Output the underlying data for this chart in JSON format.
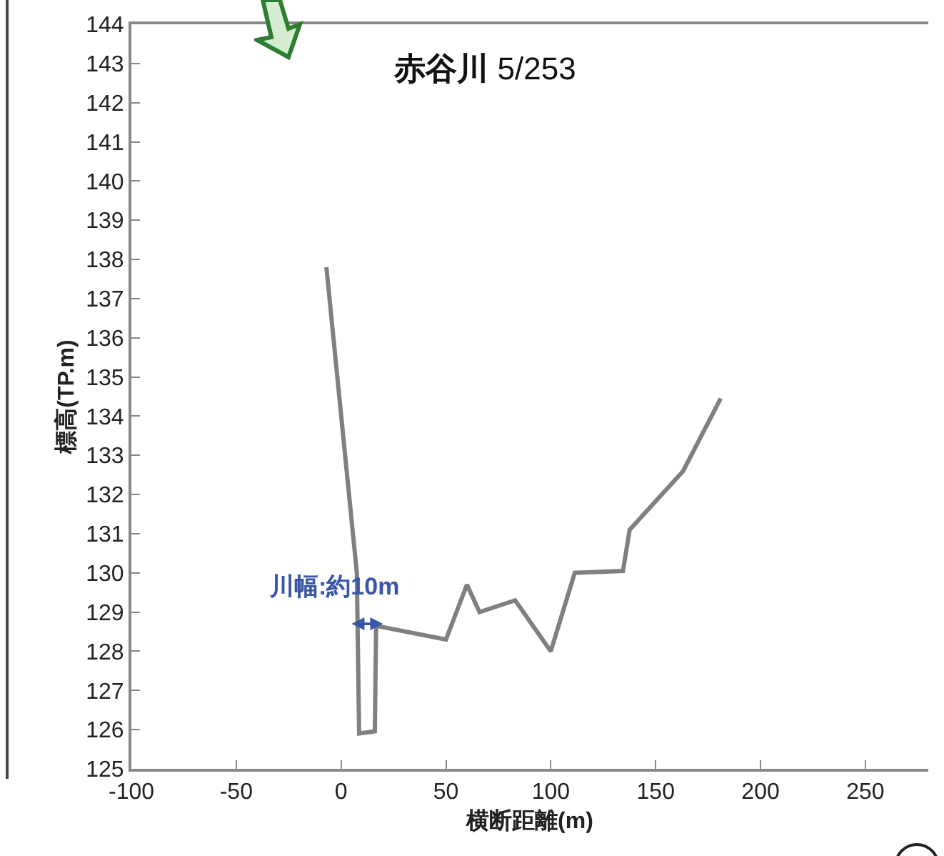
{
  "chart_data": {
    "type": "line",
    "title": "赤谷川 5/253",
    "xlabel": "横断距離(m)",
    "ylabel": "標高(TP.m)",
    "series": [
      {
        "color": "#808080",
        "x": [
          -7,
          7.5,
          8.6,
          16.1,
          16.7,
          50,
          60,
          66,
          83,
          100,
          111.4,
          134.4,
          137.6,
          163.1,
          181
        ],
        "values": [
          137.8,
          130.0,
          125.9,
          125.96,
          128.65,
          128.3,
          129.7,
          129.0,
          129.3,
          128.0,
          130.0,
          130.05,
          131.1,
          132.6,
          134.45
        ]
      }
    ],
    "xlim": [
      -100,
      280
    ],
    "xticks": [
      -100,
      -50,
      0,
      50,
      100,
      150,
      200,
      250
    ],
    "ylim": [
      125,
      144
    ],
    "yticks": [
      125,
      126,
      127,
      128,
      129,
      130,
      131,
      132,
      133,
      134,
      135,
      136,
      137,
      138,
      139,
      140,
      141,
      142,
      143,
      144
    ],
    "annotations": [
      {
        "text": "川幅:約10m",
        "x": 12,
        "y": 128.7
      }
    ],
    "grid": false,
    "marker": "none",
    "line_style": "solid"
  }
}
